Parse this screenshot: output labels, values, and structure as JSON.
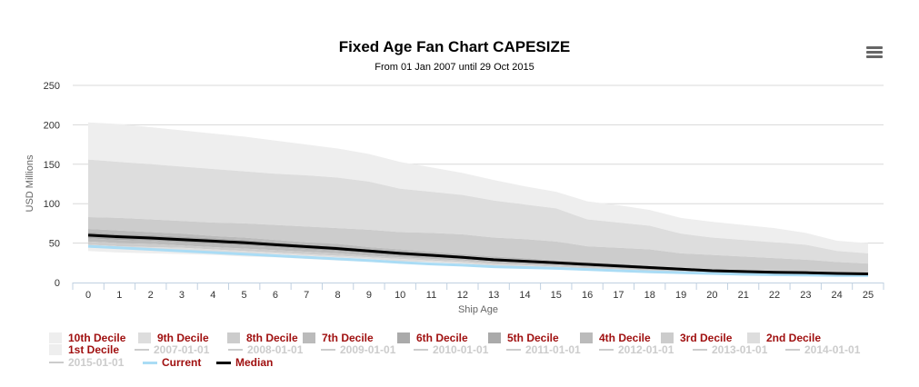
{
  "chart_data": {
    "type": "area",
    "title": "Fixed Age Fan Chart CAPESIZE",
    "subtitle": "From 01 Jan 2007 until 29 Oct 2015",
    "xlabel": "Ship Age",
    "ylabel": "USD Millions",
    "x": [
      0,
      1,
      2,
      3,
      4,
      5,
      6,
      7,
      8,
      9,
      10,
      11,
      12,
      13,
      14,
      15,
      16,
      17,
      18,
      19,
      20,
      21,
      22,
      23,
      24,
      25
    ],
    "ylim": [
      0,
      250
    ],
    "yticks": [
      0,
      50,
      100,
      150,
      200,
      250
    ],
    "grid": true,
    "legend_placement": "bottom",
    "bands": [
      {
        "name": "10th Decile",
        "color": "#eeeeee",
        "upper": [
          203,
          201,
          197,
          193,
          189,
          185,
          180,
          175,
          170,
          163,
          153,
          146,
          139,
          130,
          122,
          115,
          103,
          98,
          92,
          82,
          77,
          73,
          69,
          63,
          53,
          50
        ],
        "lower": [
          156,
          153,
          150,
          147,
          144,
          141,
          138,
          136,
          133,
          128,
          119,
          115,
          111,
          104,
          99,
          94,
          80,
          76,
          72,
          62,
          57,
          54,
          51,
          48,
          40,
          37
        ]
      },
      {
        "name": "9th Decile",
        "color": "#dddddd",
        "upper": [
          156,
          153,
          150,
          147,
          144,
          141,
          138,
          136,
          133,
          128,
          119,
          115,
          111,
          104,
          99,
          94,
          80,
          76,
          72,
          62,
          57,
          54,
          51,
          48,
          40,
          37
        ],
        "lower": [
          83,
          82,
          80,
          78,
          76,
          75,
          73,
          71,
          69,
          67,
          64,
          63,
          61,
          57,
          55,
          52,
          46,
          44,
          42,
          37,
          35,
          33,
          31,
          29,
          26,
          24
        ]
      },
      {
        "name": "8th Decile",
        "color": "#cccccc",
        "upper": [
          83,
          82,
          80,
          78,
          76,
          75,
          73,
          71,
          69,
          67,
          64,
          63,
          61,
          57,
          55,
          52,
          46,
          44,
          42,
          37,
          35,
          33,
          31,
          29,
          26,
          24
        ],
        "lower": [
          68,
          66,
          64,
          62,
          59,
          57,
          54,
          51,
          49,
          45,
          42,
          39,
          36,
          33,
          31,
          28,
          26,
          24,
          21,
          19,
          17,
          16,
          15,
          14,
          13,
          12
        ]
      },
      {
        "name": "7th Decile",
        "color": "#bbbbbb",
        "upper": [
          68,
          66,
          64,
          62,
          59,
          57,
          54,
          51,
          49,
          45,
          42,
          39,
          36,
          33,
          31,
          28,
          26,
          24,
          21,
          19,
          17,
          16,
          15,
          14,
          13,
          12
        ],
        "lower": [
          64,
          61,
          60,
          58,
          56,
          54,
          51,
          48,
          46,
          42,
          39,
          37,
          34,
          31,
          29,
          27,
          24,
          22,
          20,
          18,
          16,
          15,
          14,
          13,
          12,
          12
        ]
      },
      {
        "name": "6th Decile",
        "color": "#aaaaaa",
        "upper": [
          64,
          61,
          60,
          58,
          56,
          54,
          51,
          48,
          46,
          42,
          39,
          37,
          34,
          31,
          29,
          27,
          24,
          22,
          20,
          18,
          16,
          15,
          14,
          13,
          12,
          12
        ],
        "lower": [
          60,
          58,
          56.5,
          54.5,
          52.5,
          50.5,
          48,
          45.5,
          43,
          40,
          37,
          34.5,
          32,
          29,
          27,
          25,
          23,
          21,
          19,
          17,
          15,
          14,
          13,
          12.5,
          11.5,
          11
        ]
      },
      {
        "name": "5th Decile",
        "color": "#aaaaaa",
        "upper": [
          60,
          58,
          56.5,
          54.5,
          52.5,
          50.5,
          48,
          45.5,
          43,
          40,
          37,
          34.5,
          32,
          29,
          27,
          25,
          23,
          21,
          19,
          17,
          15,
          14,
          13,
          12.5,
          11.5,
          11
        ],
        "lower": [
          56,
          54,
          53,
          51,
          49,
          47,
          45,
          42,
          40,
          37,
          34,
          32,
          30,
          27,
          25,
          23,
          21,
          20,
          18,
          16,
          14,
          13,
          12,
          12,
          11,
          10
        ]
      },
      {
        "name": "4th Decile",
        "color": "#bbbbbb",
        "upper": [
          56,
          54,
          53,
          51,
          49,
          47,
          45,
          42,
          40,
          37,
          34,
          32,
          30,
          27,
          25,
          23,
          21,
          20,
          18,
          16,
          14,
          13,
          12,
          12,
          11,
          10
        ],
        "lower": [
          52,
          50,
          49,
          47,
          45,
          43,
          41,
          39,
          37,
          34,
          32,
          30,
          28,
          25,
          23,
          22,
          20,
          18,
          16,
          15,
          13,
          12,
          11,
          11,
          10,
          9
        ]
      },
      {
        "name": "3rd Decile",
        "color": "#cccccc",
        "upper": [
          52,
          50,
          49,
          47,
          45,
          43,
          41,
          39,
          37,
          34,
          32,
          30,
          28,
          25,
          23,
          22,
          20,
          18,
          16,
          15,
          13,
          12,
          11,
          11,
          10,
          9
        ],
        "lower": [
          48,
          46,
          45,
          44,
          42,
          40,
          38,
          36,
          34,
          32,
          30,
          28,
          26,
          23,
          22,
          20,
          18,
          17,
          15,
          14,
          12,
          11,
          10,
          10,
          9,
          9
        ]
      },
      {
        "name": "2nd Decile",
        "color": "#dddddd",
        "upper": [
          48,
          46,
          45,
          44,
          42,
          40,
          38,
          36,
          34,
          32,
          30,
          28,
          26,
          23,
          22,
          20,
          18,
          17,
          15,
          14,
          12,
          11,
          10,
          10,
          9,
          9
        ],
        "lower": [
          44,
          43,
          42,
          40,
          39,
          37,
          36,
          34,
          32,
          30,
          27,
          26,
          24,
          21,
          20,
          19,
          17,
          16,
          14,
          13,
          11,
          10,
          10,
          9,
          9,
          8
        ]
      },
      {
        "name": "1st Decile",
        "color": "#eeeeee",
        "upper": [
          44,
          43,
          42,
          40,
          39,
          37,
          36,
          34,
          32,
          30,
          27,
          26,
          24,
          21,
          20,
          19,
          17,
          16,
          14,
          13,
          11,
          10,
          10,
          9,
          9,
          8
        ],
        "lower": [
          40,
          38,
          37,
          36,
          35,
          33,
          32,
          30,
          28,
          26,
          24,
          23,
          21,
          19,
          18,
          17,
          15,
          14,
          13,
          11,
          10,
          9,
          9,
          8,
          8,
          7
        ]
      }
    ],
    "hidden_series": [
      "2007-01-01",
      "2008-01-01",
      "2009-01-01",
      "2010-01-01",
      "2011-01-01",
      "2012-01-01",
      "2013-01-01",
      "2014-01-01",
      "2015-01-01"
    ],
    "series": [
      {
        "name": "Current",
        "color": "#aadcf5",
        "values": [
          46,
          44,
          42,
          40,
          38,
          36,
          34,
          32,
          30,
          28,
          25.5,
          23.5,
          22,
          20,
          19,
          18,
          16.5,
          15,
          13.5,
          12.5,
          11.5,
          10.5,
          10,
          9.5,
          9,
          9
        ]
      },
      {
        "name": "Median",
        "color": "#000000",
        "values": [
          60,
          58,
          56.5,
          54.5,
          52.5,
          50.5,
          48,
          45.5,
          43,
          40,
          37,
          34.5,
          32,
          29,
          27,
          25,
          23,
          21,
          19,
          17,
          15,
          14,
          13,
          12.5,
          11.5,
          11
        ]
      }
    ],
    "legend_text_color": "#a01010",
    "legend_hidden_color": "#cccccc"
  },
  "menu_icon": "hamburger-menu-icon"
}
